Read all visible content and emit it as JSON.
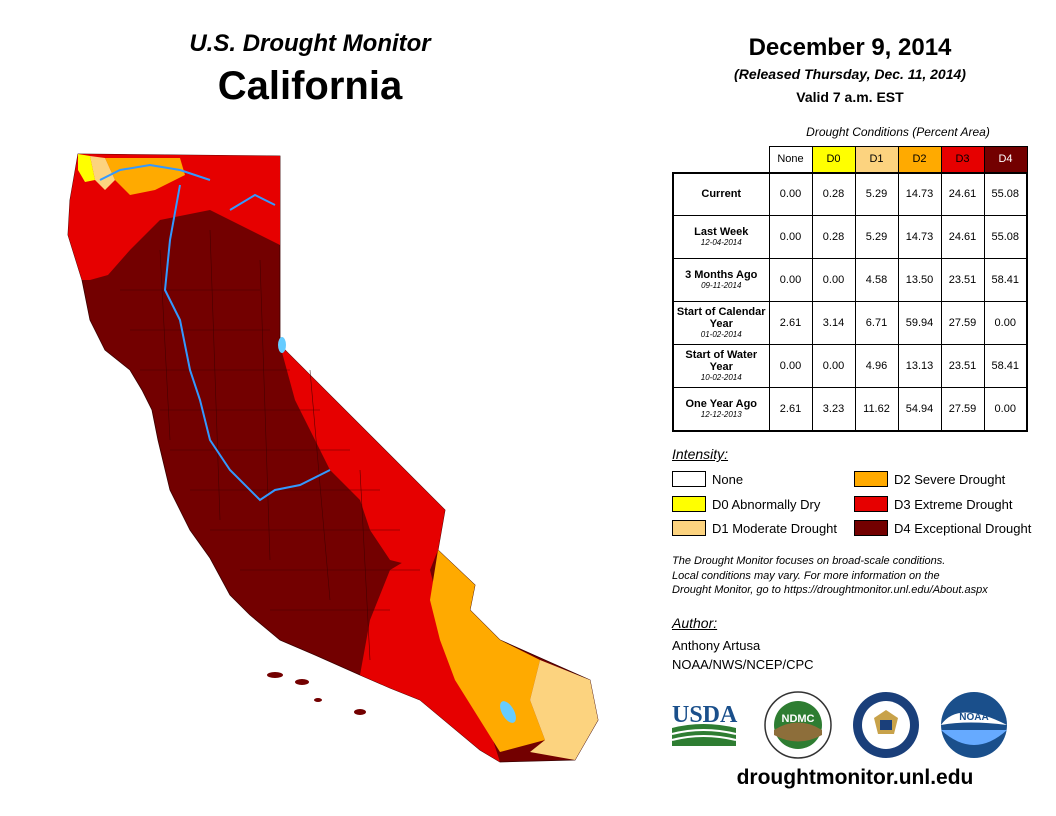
{
  "header": {
    "title": "U.S. Drought Monitor",
    "region": "California",
    "date": "December 9, 2014",
    "released": "(Released Thursday, Dec. 11, 2014)",
    "valid": "Valid 7 a.m. EST"
  },
  "table": {
    "caption": "Drought Conditions (Percent Area)",
    "columns": [
      "None",
      "D0",
      "D1",
      "D2",
      "D3",
      "D4"
    ],
    "column_colors": [
      "#ffffff",
      "#ffff00",
      "#fcd37f",
      "#ffaa00",
      "#e60000",
      "#730000"
    ],
    "rows": [
      {
        "label": "Current",
        "date": "",
        "values": [
          "0.00",
          "0.28",
          "5.29",
          "14.73",
          "24.61",
          "55.08"
        ]
      },
      {
        "label": "Last Week",
        "date": "12-04-2014",
        "values": [
          "0.00",
          "0.28",
          "5.29",
          "14.73",
          "24.61",
          "55.08"
        ]
      },
      {
        "label": "3 Months Ago",
        "date": "09-11-2014",
        "values": [
          "0.00",
          "0.00",
          "4.58",
          "13.50",
          "23.51",
          "58.41"
        ]
      },
      {
        "label": "Start of Calendar Year",
        "date": "01-02-2014",
        "values": [
          "2.61",
          "3.14",
          "6.71",
          "59.94",
          "27.59",
          "0.00"
        ]
      },
      {
        "label": "Start of Water Year",
        "date": "10-02-2014",
        "values": [
          "0.00",
          "0.00",
          "4.96",
          "13.13",
          "23.51",
          "58.41"
        ]
      },
      {
        "label": "One Year Ago",
        "date": "12-12-2013",
        "values": [
          "2.61",
          "3.23",
          "11.62",
          "54.94",
          "27.59",
          "0.00"
        ]
      }
    ]
  },
  "legend": {
    "heading": "Intensity:",
    "items": [
      {
        "label": "None",
        "color": "#ffffff"
      },
      {
        "label": "D0 Abnormally Dry",
        "color": "#ffff00"
      },
      {
        "label": "D1 Moderate Drought",
        "color": "#fcd37f"
      },
      {
        "label": "D2 Severe Drought",
        "color": "#ffaa00"
      },
      {
        "label": "D3 Extreme Drought",
        "color": "#e60000"
      },
      {
        "label": "D4 Exceptional Drought",
        "color": "#730000"
      }
    ]
  },
  "note": {
    "line1": "The Drought Monitor focuses on broad-scale conditions.",
    "line2": "Local conditions may vary. For more information on the",
    "line3": "Drought Monitor, go to https://droughtmonitor.unl.edu/About.aspx"
  },
  "author": {
    "heading": "Author:",
    "name": "Anthony Artusa",
    "org": "NOAA/NWS/NCEP/CPC"
  },
  "logos": {
    "usda": "USDA",
    "ndmc": "NDMC",
    "noaa": "NOAA"
  },
  "website": "droughtmonitor.unl.edu"
}
